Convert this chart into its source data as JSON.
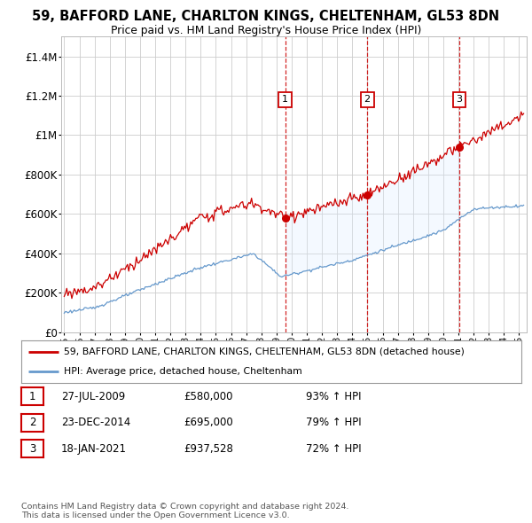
{
  "title": "59, BAFFORD LANE, CHARLTON KINGS, CHELTENHAM, GL53 8DN",
  "subtitle": "Price paid vs. HM Land Registry's House Price Index (HPI)",
  "ylim": [
    0,
    1500000
  ],
  "xlim_start": 1994.8,
  "xlim_end": 2025.5,
  "yticks": [
    0,
    200000,
    400000,
    600000,
    800000,
    1000000,
    1200000,
    1400000
  ],
  "ytick_labels": [
    "£0",
    "£200K",
    "£400K",
    "£600K",
    "£800K",
    "£1M",
    "£1.2M",
    "£1.4M"
  ],
  "sale_dates": [
    2009.57,
    2014.98,
    2021.05
  ],
  "sale_prices": [
    580000,
    695000,
    937528
  ],
  "sale_labels": [
    "1",
    "2",
    "3"
  ],
  "legend_line1": "59, BAFFORD LANE, CHARLTON KINGS, CHELTENHAM, GL53 8DN (detached house)",
  "legend_line2": "HPI: Average price, detached house, Cheltenham",
  "red_color": "#cc0000",
  "blue_color": "#6699cc",
  "shade_color": "#ddeeff",
  "table_rows": [
    [
      "1",
      "27-JUL-2009",
      "£580,000",
      "93% ↑ HPI"
    ],
    [
      "2",
      "23-DEC-2014",
      "£695,000",
      "79% ↑ HPI"
    ],
    [
      "3",
      "18-JAN-2021",
      "£937,528",
      "72% ↑ HPI"
    ]
  ],
  "footer": "Contains HM Land Registry data © Crown copyright and database right 2024.\nThis data is licensed under the Open Government Licence v3.0.",
  "background_color": "#ffffff"
}
